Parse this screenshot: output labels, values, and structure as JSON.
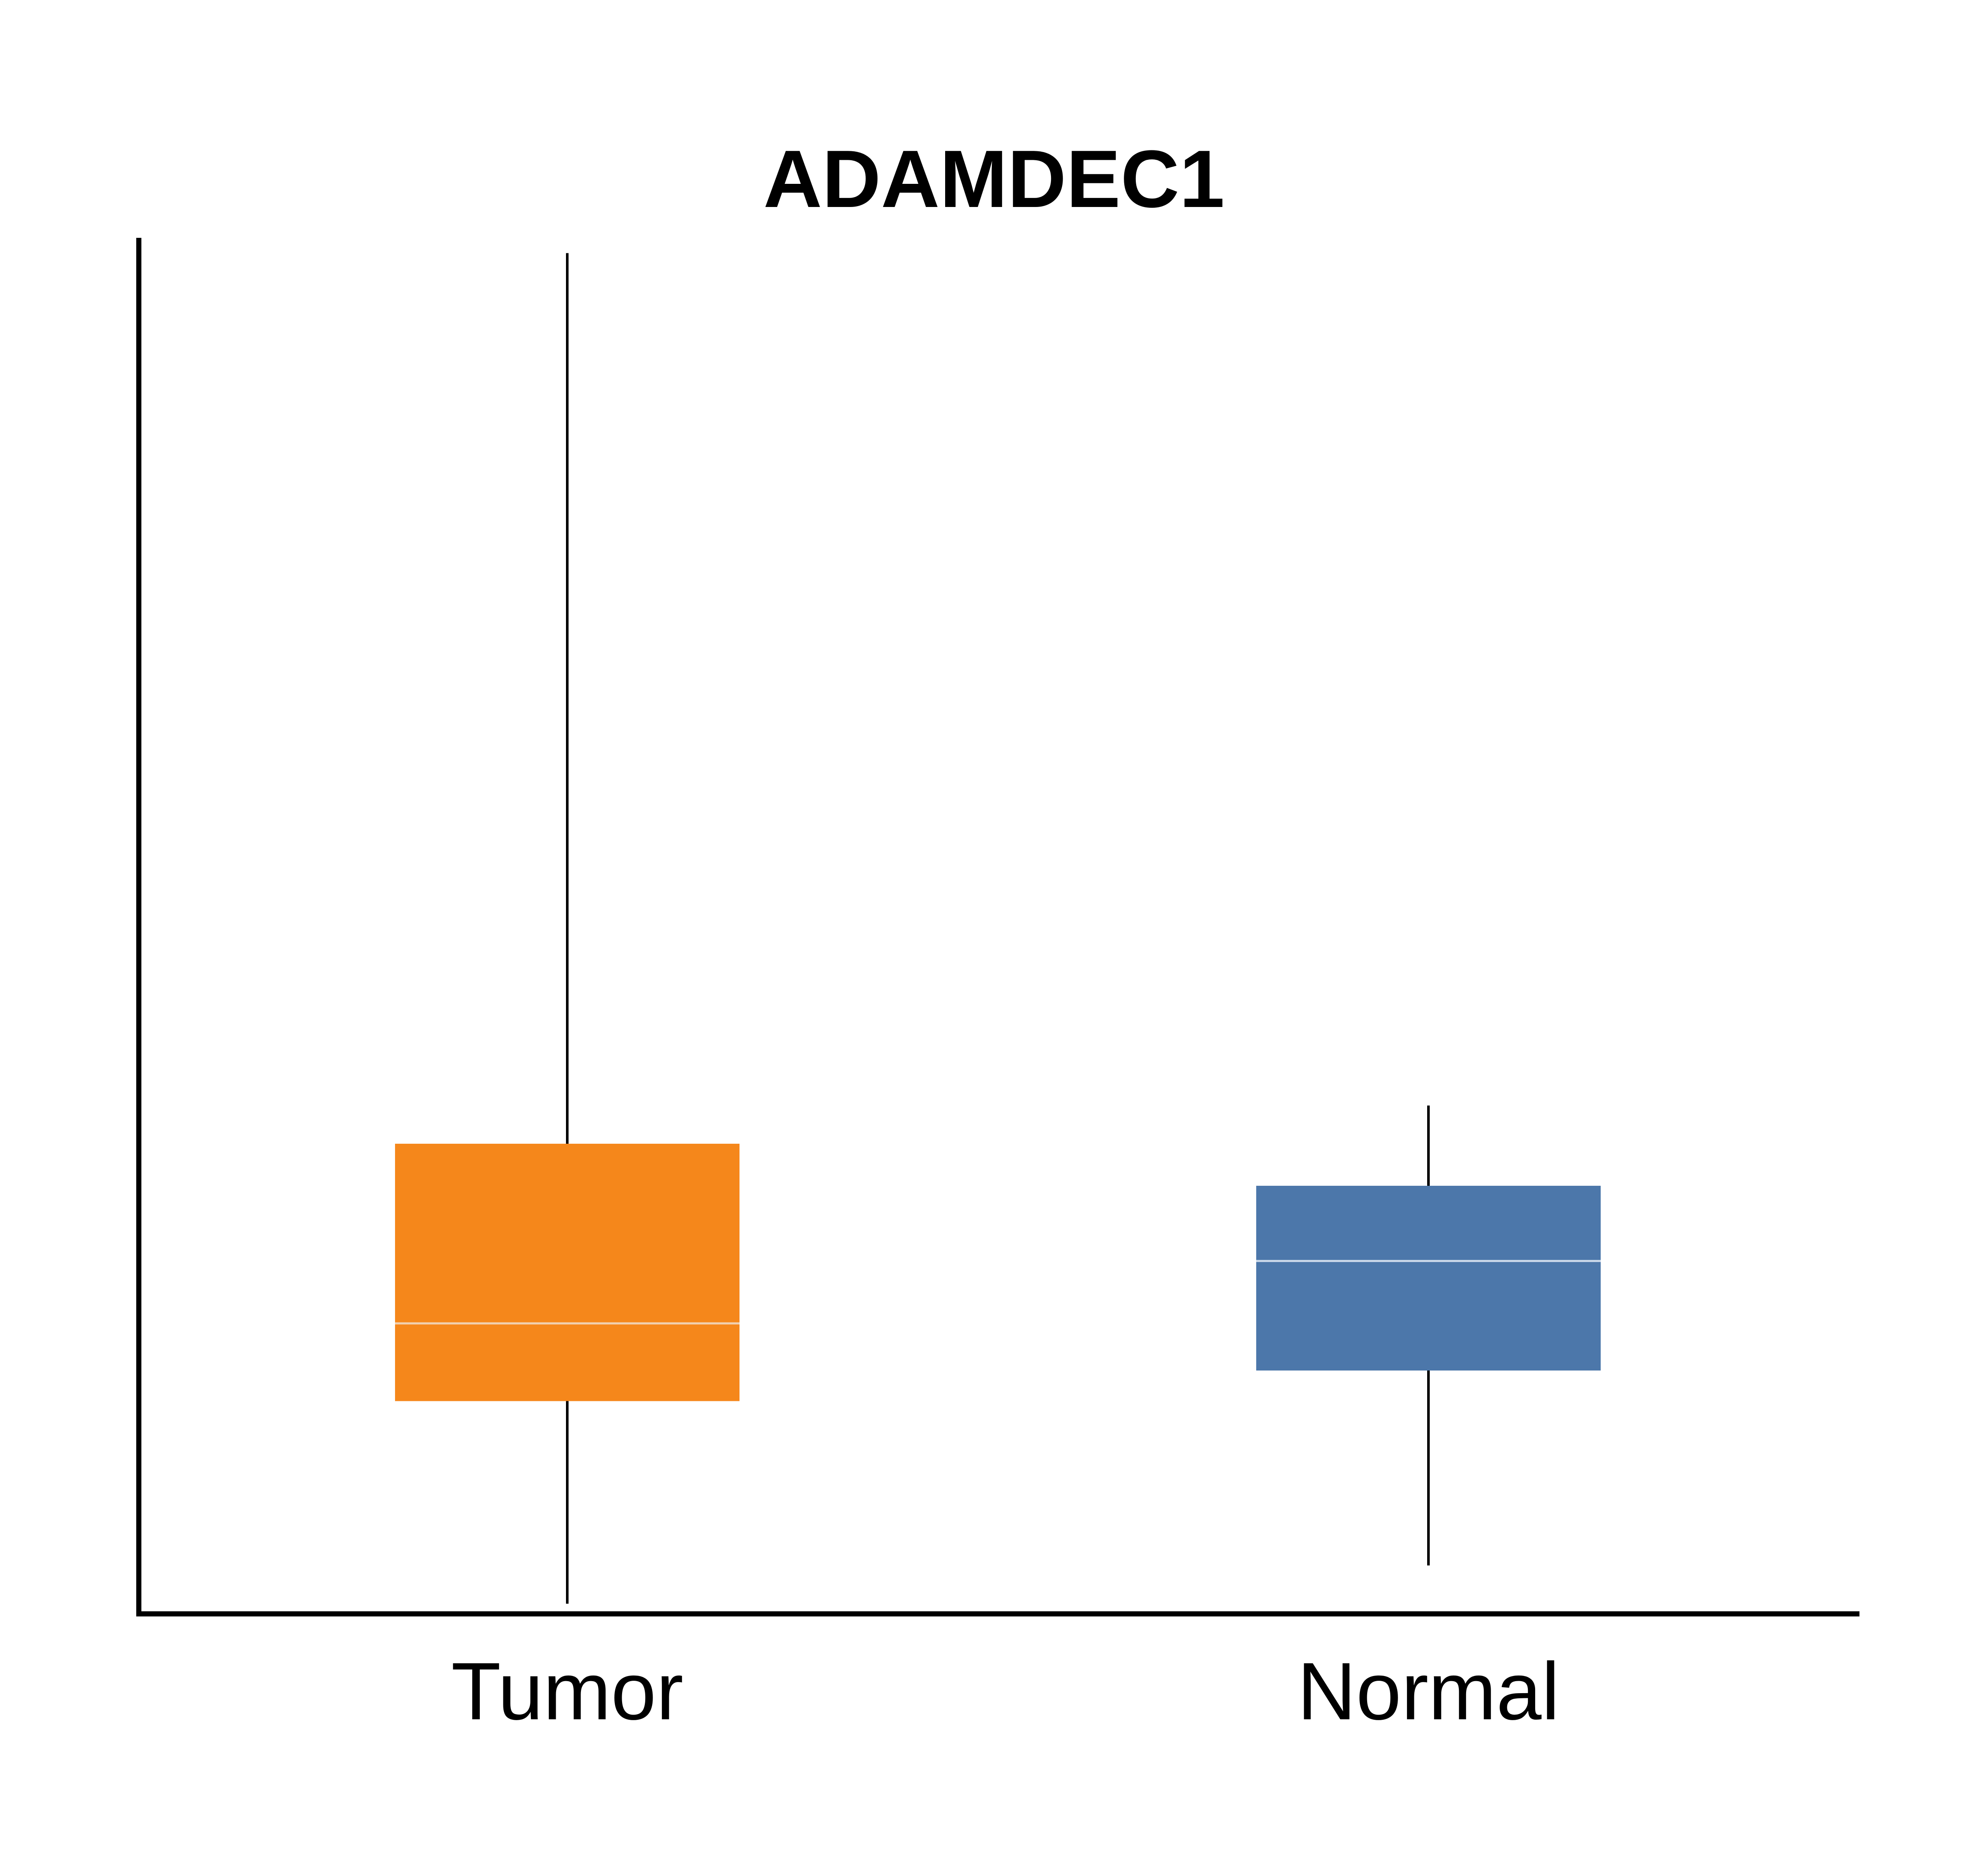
{
  "chart_data": {
    "type": "box",
    "title": "ADAMDEC1",
    "xlabel": "",
    "ylabel": "",
    "ylim": [
      0,
      1080
    ],
    "y_ticks_shown": false,
    "grid": false,
    "legend": "none",
    "categories": [
      "Tumor",
      "Normal"
    ],
    "boxes": [
      {
        "category": "Tumor",
        "whisker_low": 8,
        "q1": 167,
        "median": 228,
        "q3": 369,
        "whisker_high": 1068,
        "color": "#f5871b",
        "median_color": "#f0d0b0"
      },
      {
        "category": "Normal",
        "whisker_low": 38,
        "q1": 191,
        "median": 277,
        "q3": 336,
        "whisker_high": 399,
        "color": "#4c77aa",
        "median_color": "#c8d6e8"
      }
    ],
    "colors": {
      "axis": "#000000",
      "whisker": "#000000"
    }
  }
}
